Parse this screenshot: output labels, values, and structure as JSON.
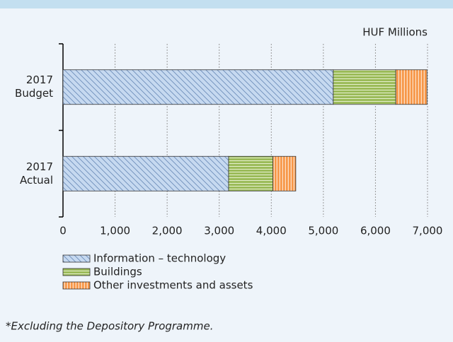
{
  "chart_data": {
    "type": "stacked_barh",
    "unit_label": "HUF Millions",
    "categories": [
      "2017 Budget",
      "2017 Actual"
    ],
    "series": [
      {
        "name": "Information – technology",
        "color": "#c6d9f0",
        "values": [
          5190,
          3180
        ]
      },
      {
        "name": "Buildings",
        "color": "#9bbb59",
        "values": [
          1200,
          850
        ]
      },
      {
        "name": "Other investments and assets",
        "color": "#f79646",
        "values": [
          600,
          440
        ]
      }
    ],
    "xlim": [
      0,
      7000
    ],
    "xticks": [
      0,
      {
        "value": 1000,
        "label": "1,000"
      },
      {
        "value": 2000,
        "label": "2,000"
      },
      {
        "value": 3000,
        "label": "3,000"
      },
      {
        "value": 4000,
        "label": "4,000"
      },
      {
        "value": 5000,
        "label": "5,000"
      },
      {
        "value": 6000,
        "label": "6,000"
      },
      {
        "value": 7000,
        "label": "7,000"
      }
    ],
    "grid": true,
    "footnote": "*Excluding the Depository Programme."
  }
}
